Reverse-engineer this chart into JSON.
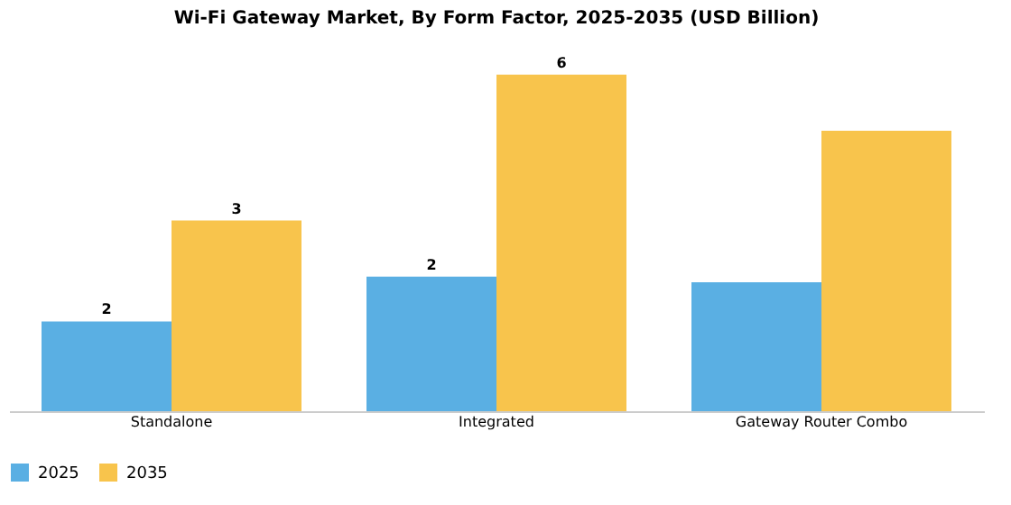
{
  "chart_data": {
    "type": "bar",
    "title": "Wi-Fi Gateway Market, By Form Factor, 2025-2035 (USD Billion)",
    "categories": [
      "Standalone",
      "Integrated",
      "Gateway Router Combo"
    ],
    "series": [
      {
        "name": "2025",
        "color": "#5aafe3",
        "values": [
          1.6,
          2.4,
          2.3
        ],
        "value_labels": [
          "2",
          "2",
          null
        ]
      },
      {
        "name": "2035",
        "color": "#f8c44c",
        "values": [
          3.4,
          6.0,
          5.0
        ],
        "value_labels": [
          "3",
          "6",
          null
        ]
      }
    ],
    "legend": "bottom",
    "grid": false
  }
}
